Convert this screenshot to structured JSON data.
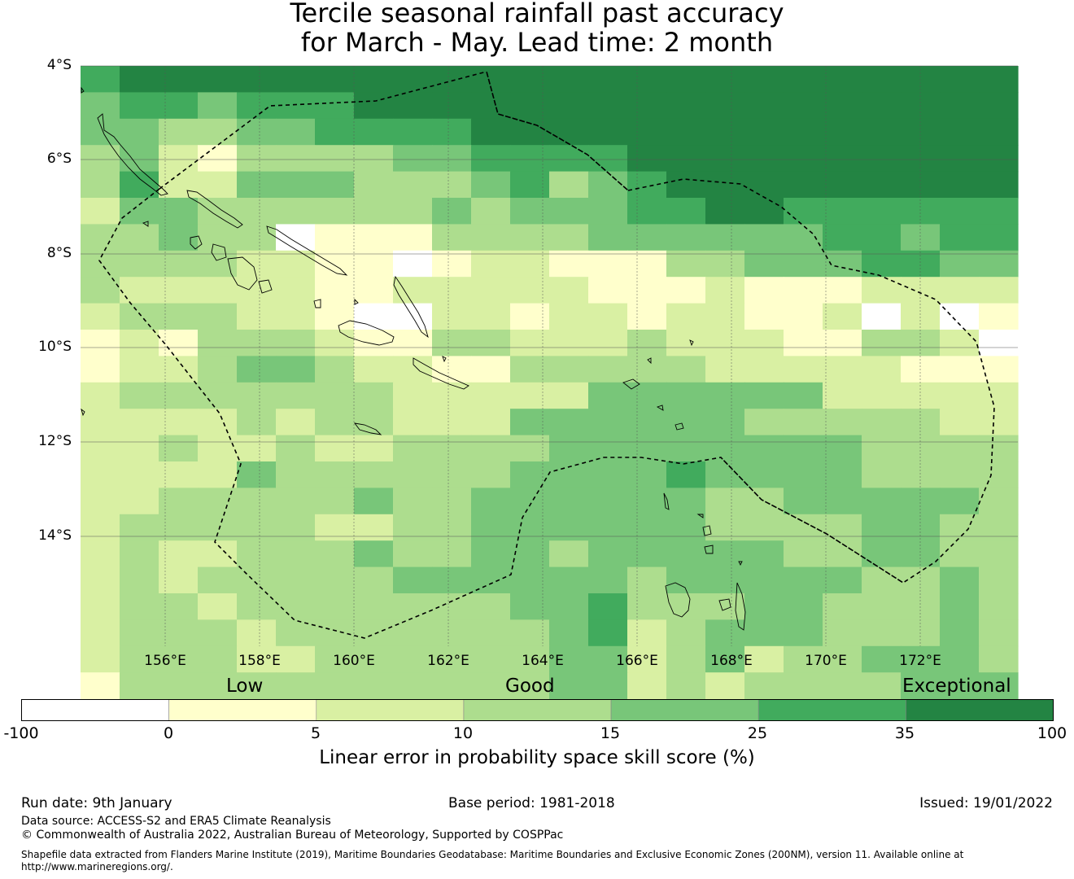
{
  "title": {
    "line1": "Tercile seasonal rainfall past accuracy",
    "line2": "for March - May. Lead time: 2 month"
  },
  "map": {
    "lat_labels": [
      "4°S",
      "6°S",
      "8°S",
      "10°S",
      "12°S",
      "14°S"
    ],
    "lon_labels": [
      "156°E",
      "158°E",
      "160°E",
      "162°E",
      "164°E",
      "166°E",
      "168°E",
      "170°E",
      "172°E"
    ],
    "colors": [
      "#ffffff",
      "#ffffcc",
      "#d9f0a3",
      "#addd8e",
      "#78c679",
      "#41ab5d",
      "#238443"
    ],
    "grid": [
      "566666666666666666666666",
      "455455566666666666666666",
      "443344555566666666666666",
      "342133334455556666666666",
      "352244433345345666666666",
      "244333333434445566555555",
      "334330111333344444455455",
      "333322110122111334445544",
      "322222112222211121112222",
      "233322100221221221120201",
      "121333211332223222113320",
      "122344322113333322222111",
      "233333332222244444422222",
      "222232332224444443333322",
      "223223223333444444443333",
      "222243333334444544443333",
      "223333343344444433444443",
      "233333223344444433334433",
      "232233343344344444334433",
      "232333334444443444443343",
      "233233333334453334433343",
      "233323333333452344433343",
      "233322333333442342334443",
      "133333333333442323333444"
    ]
  },
  "legend": {
    "categories": [
      "Low",
      "Good",
      "Exceptional"
    ],
    "ticks": [
      "-100",
      "0",
      "5",
      "10",
      "15",
      "25",
      "35",
      "100"
    ],
    "label": "Linear error in probability space skill score (%)"
  },
  "footer": {
    "run_date": "Run date: 9th January",
    "base_period": "Base period: 1981-2018",
    "issued": "Issued: 19/01/2022",
    "data_source": "Data source: ACCESS-S2 and ERA5 Climate Reanalysis",
    "copyright": "© Commonwealth of Australia 2022, Australian Bureau of Meteorology, Supported by COSPPac",
    "shapefile_line1": "Shapefile data extracted from Flanders Marine Institute (2019), Maritime Boundaries Geodatabase: Maritime Boundaries and Exclusive Economic Zones (200NM), version 11. Available online at",
    "shapefile_line2": "http://www.marineregions.org/."
  }
}
